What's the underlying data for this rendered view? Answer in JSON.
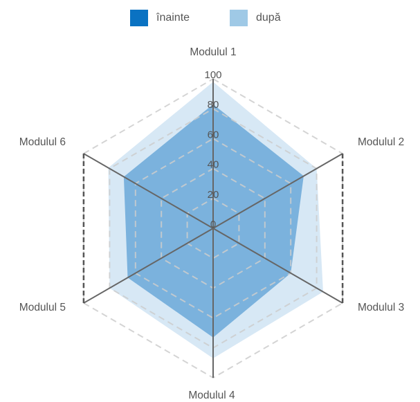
{
  "legend": {
    "items": [
      {
        "label": "înainte",
        "color": "#0a72c2"
      },
      {
        "label": "după",
        "color": "#9fc9e6"
      }
    ]
  },
  "chart_data": {
    "type": "radar",
    "categories": [
      "Modulul 1",
      "Modulul 2",
      "Modulul 3",
      "Modulul 4",
      "Modulul 5",
      "Modulul 6"
    ],
    "range": [
      0,
      100
    ],
    "ticks": [
      0,
      20,
      40,
      60,
      80,
      100
    ],
    "series": [
      {
        "name": "înainte",
        "values": [
          83,
          70,
          60,
          73,
          66,
          69
        ],
        "color": "#0a72c2"
      },
      {
        "name": "după",
        "values": [
          98,
          80,
          85,
          87,
          80,
          81
        ],
        "color": "#9fc9e6"
      }
    ]
  }
}
